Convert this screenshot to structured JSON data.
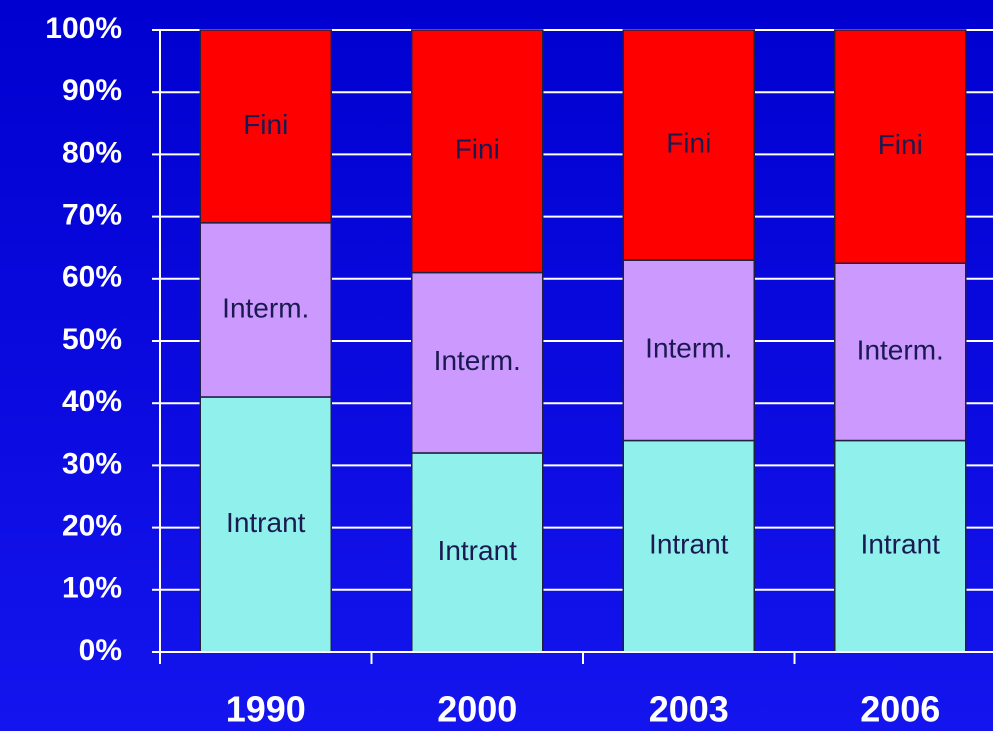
{
  "chart_data": {
    "type": "stacked_bar",
    "categories": [
      "1990",
      "2000",
      "2003",
      "2006"
    ],
    "series": [
      {
        "name": "Intrant",
        "color": "#90f0ec",
        "values": [
          41,
          32,
          34,
          34
        ]
      },
      {
        "name": "Interm.",
        "color": "#cc99ff",
        "values": [
          28,
          29,
          29,
          28.5
        ]
      },
      {
        "name": "Fini",
        "color": "#ff0000",
        "values": [
          31,
          39,
          37,
          37.5
        ]
      }
    ],
    "ylim": [
      0,
      100
    ],
    "yticks": [
      {
        "value": 0,
        "label": "0%"
      },
      {
        "value": 10,
        "label": "10%"
      },
      {
        "value": 20,
        "label": "20%"
      },
      {
        "value": 30,
        "label": "30%"
      },
      {
        "value": 40,
        "label": "40%"
      },
      {
        "value": 50,
        "label": "50%"
      },
      {
        "value": 60,
        "label": "60%"
      },
      {
        "value": 70,
        "label": "70%"
      },
      {
        "value": 80,
        "label": "80%"
      },
      {
        "value": 90,
        "label": "90%"
      },
      {
        "value": 100,
        "label": "100%"
      }
    ],
    "grid": true
  }
}
